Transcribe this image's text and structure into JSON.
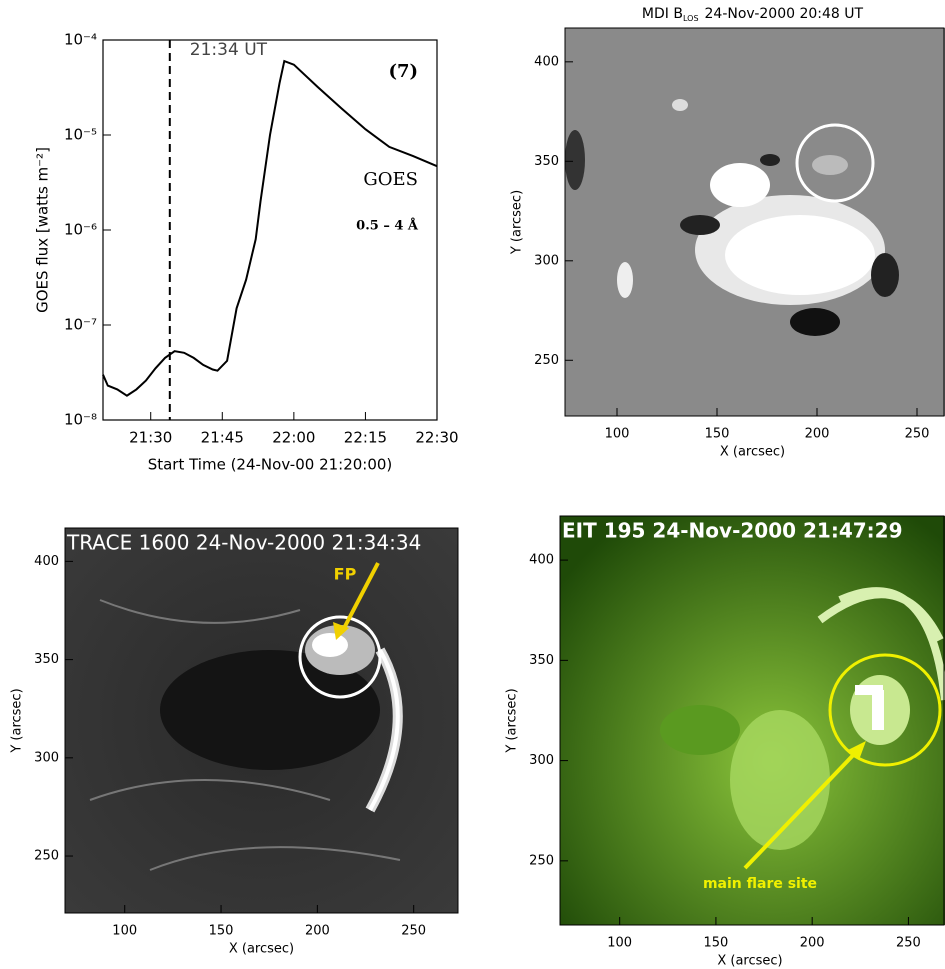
{
  "chart_data": [
    {
      "type": "line",
      "log_y": true,
      "color": "#000000",
      "x": [
        0,
        1,
        3,
        5,
        7,
        9,
        11,
        13,
        15,
        17,
        19,
        21,
        23,
        24,
        26,
        28,
        30,
        32,
        33,
        35,
        37,
        38,
        40,
        45,
        50,
        55,
        60,
        65,
        70
      ],
      "values": [
        3e-08,
        2.3e-08,
        2.1e-08,
        1.8e-08,
        2.1e-08,
        2.6e-08,
        3.5e-08,
        4.5e-08,
        5.3e-08,
        5.1e-08,
        4.5e-08,
        3.8e-08,
        3.4e-08,
        3.3e-08,
        4.2e-08,
        1.5e-07,
        3e-07,
        8e-07,
        2e-06,
        1e-05,
        3.5e-05,
        6e-05,
        5.5e-05,
        3.2e-05,
        1.9e-05,
        1.15e-05,
        7.5e-06,
        6e-06,
        4.7e-06
      ],
      "xlim": [
        0,
        70
      ],
      "ylim": [
        1e-08,
        0.0001
      ],
      "xticks": [
        {
          "value": 10,
          "label": "21:30"
        },
        {
          "value": 25,
          "label": "21:45"
        },
        {
          "value": 40,
          "label": "22:00"
        },
        {
          "value": 55,
          "label": "22:15"
        },
        {
          "value": 70,
          "label": "22:30"
        }
      ],
      "yticks": [
        {
          "value": 1e-08,
          "label": "10⁻⁸"
        },
        {
          "value": 1e-07,
          "label": "10⁻⁷"
        },
        {
          "value": 1e-06,
          "label": "10⁻⁶"
        },
        {
          "value": 1e-05,
          "label": "10⁻⁵"
        },
        {
          "value": 0.0001,
          "label": "10⁻⁴"
        }
      ],
      "xlabel": "Start Time (24-Nov-00 21:20:00)",
      "ylabel": "GOES flux [watts m⁻²]",
      "vline": {
        "x": 14,
        "label": "21:34 UT"
      },
      "annotations": [
        "(7)",
        "GOES",
        "0.5 – 4 Å"
      ]
    },
    {
      "type": "image",
      "title_main": "MDI B",
      "title_subscript": "LOS",
      "title_suffix": "24-Nov-2000 20:48 UT",
      "xlim": [
        74,
        264
      ],
      "ylim": [
        222,
        417
      ],
      "xticks": [
        100,
        150,
        200,
        250
      ],
      "yticks": [
        250,
        300,
        350,
        400
      ],
      "xlabel": "X (arcsec)",
      "ylabel": "Y (arcsec)"
    },
    {
      "type": "image",
      "title": "TRACE 1600 24-Nov-2000 21:34:34",
      "annotations": [
        "FP"
      ],
      "xlim": [
        69,
        273
      ],
      "ylim": [
        221,
        417
      ],
      "xticks": [
        100,
        150,
        200,
        250
      ],
      "yticks": [
        250,
        300,
        350,
        400
      ],
      "xlabel": "X (arcsec)",
      "ylabel": "Y (arcsec)"
    },
    {
      "type": "image",
      "title": "EIT 195 24-Nov-2000 21:47:29",
      "annotations": [
        "main flare site"
      ],
      "xlim": [
        69,
        269
      ],
      "ylim": [
        218,
        422
      ],
      "xticks": [
        100,
        150,
        200,
        250
      ],
      "yticks": [
        250,
        300,
        350,
        400
      ],
      "xlabel": "X (arcsec)",
      "ylabel": "Y (arcsec)"
    }
  ]
}
